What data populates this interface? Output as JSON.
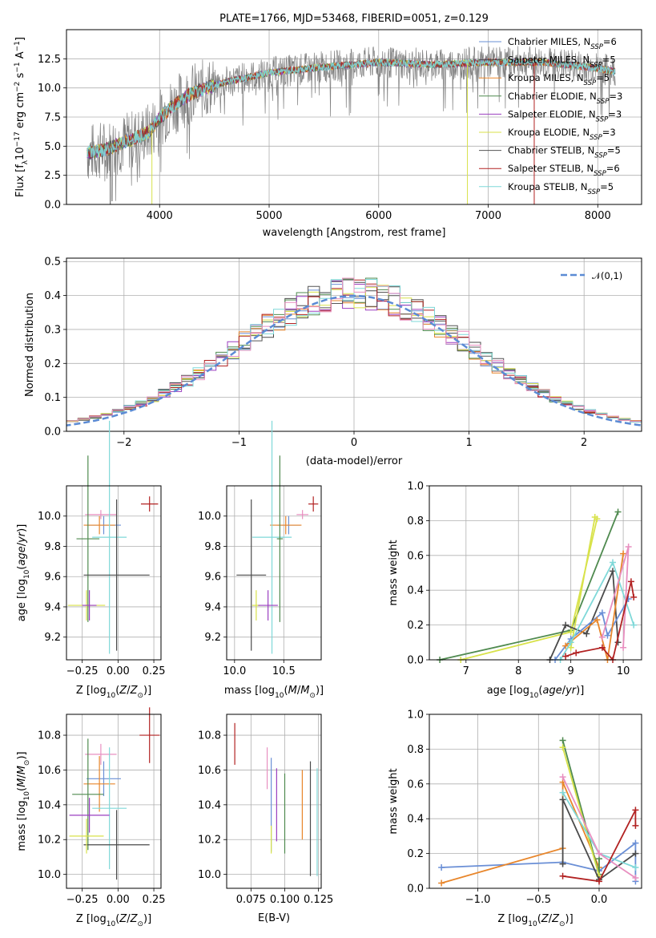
{
  "chart_data": [
    {
      "type": "line",
      "title": "PLATE=1766, MJD=53468, FIBERID=0051, z=0.129",
      "xlabel": "wavelength [Angstrom, rest frame]",
      "ylabel": "Flux [f_λ 10^-17 erg cm^-2 s^-1 A^-1]",
      "xlim": [
        3150,
        8400
      ],
      "ylim": [
        0,
        15
      ],
      "xticks": [
        "4000",
        "5000",
        "6000",
        "7000",
        "8000"
      ],
      "yticks": [
        "0.0",
        "2.5",
        "5.0",
        "7.5",
        "10.0",
        "12.5"
      ],
      "spectrum_range": [
        3340,
        8160
      ],
      "legend_position": "upper right",
      "series": [
        {
          "name": "Chabrier MILES, N_SSP=6",
          "color": "#6a8fd6"
        },
        {
          "name": "Salpeter MILES, N_SSP=5",
          "color": "#4a4a4a"
        },
        {
          "name": "Kroupa MILES, N_SSP=5",
          "color": "#e8862b"
        },
        {
          "name": "Chabrier ELODIE, N_SSP=3",
          "color": "#4f8a4f"
        },
        {
          "name": "Salpeter ELODIE, N_SSP=3",
          "color": "#9b3fc0"
        },
        {
          "name": "Kroupa ELODIE, N_SSP=3",
          "color": "#d8e24a"
        },
        {
          "name": "Chabrier STELIB, N_SSP=5",
          "color": "#555555"
        },
        {
          "name": "Salpeter STELIB, N_SSP=6",
          "color": "#b22222"
        },
        {
          "name": "Kroupa STELIB, N_SSP=5",
          "color": "#7fd8d8"
        }
      ],
      "continuum": [
        [
          3340,
          4.4
        ],
        [
          3500,
          4.7
        ],
        [
          3700,
          5.4
        ],
        [
          3900,
          6.2
        ],
        [
          4000,
          7.4
        ],
        [
          4100,
          8.3
        ],
        [
          4300,
          9.6
        ],
        [
          4600,
          10.5
        ],
        [
          5000,
          11.3
        ],
        [
          5500,
          11.8
        ],
        [
          6000,
          12.2
        ],
        [
          6500,
          12.0
        ],
        [
          7000,
          12.2
        ],
        [
          7500,
          12.2
        ],
        [
          8000,
          11.7
        ],
        [
          8160,
          11.4
        ]
      ],
      "spike_lines": [
        {
          "x": 3930,
          "color": "#d8e24a",
          "y_bottom": 0
        },
        {
          "x": 6810,
          "color": "#d8e24a",
          "y_bottom": 0
        },
        {
          "x": 7420,
          "color": "#b22222",
          "y_bottom": 0
        },
        {
          "x": 3550,
          "color": "#555555",
          "y_bottom": 0
        }
      ]
    },
    {
      "type": "histogram",
      "xlabel": "(data-model)/error",
      "ylabel": "Normed distribution",
      "xlim": [
        -2.5,
        2.5
      ],
      "ylim": [
        0,
        0.51
      ],
      "xticks": [
        "−2",
        "−1",
        "0",
        "1",
        "2"
      ],
      "yticks": [
        "0.0",
        "0.1",
        "0.2",
        "0.3",
        "0.4",
        "0.5"
      ],
      "reference_curve": {
        "name": "𝒩(0,1)",
        "color": "#5b8bd4",
        "mean": 0,
        "sigma": 1
      },
      "legend_position": "upper right",
      "colors": [
        "#6a8fd6",
        "#4a4a4a",
        "#e8862b",
        "#4f8a4f",
        "#9b3fc0",
        "#d8e24a",
        "#555555",
        "#b22222",
        "#7fd8d8",
        "#e88fc0"
      ]
    },
    {
      "type": "scatter",
      "xlabel": "Z [log10(Z/Z⊙)]",
      "ylabel": "age  [log10(age/yr)]",
      "xlim": [
        -0.36,
        0.3
      ],
      "ylim": [
        9.05,
        10.2
      ],
      "xticks": [
        "−0.25",
        "0.00",
        "0.25"
      ],
      "yticks": [
        "9.2",
        "9.4",
        "9.6",
        "9.8",
        "10.0"
      ],
      "points": [
        {
          "x": 0.22,
          "y": 10.08,
          "xerr": 0.06,
          "yerr": 0.05,
          "color": "#b22222"
        },
        {
          "x": -0.12,
          "y": 10.01,
          "xerr": 0.11,
          "yerr": 0.03,
          "color": "#e88fc0"
        },
        {
          "x": -0.1,
          "y": 9.94,
          "xerr": 0.12,
          "yerr": 0.06,
          "color": "#6a8fd6"
        },
        {
          "x": -0.13,
          "y": 9.94,
          "xerr": 0.11,
          "yerr": 0.06,
          "color": "#e8862b"
        },
        {
          "x": -0.21,
          "y": 9.85,
          "xerr": 0.08,
          "yerr": 0.55,
          "color": "#4f8a4f"
        },
        {
          "x": -0.06,
          "y": 9.86,
          "xerr": 0.12,
          "yerr": 0.77,
          "color": "#7fd8d8"
        },
        {
          "x": -0.01,
          "y": 9.61,
          "xerr": 0.23,
          "yerr": 0.5,
          "color": "#4a4a4a"
        },
        {
          "x": -0.22,
          "y": 9.41,
          "xerr": 0.13,
          "yerr": 0.1,
          "color": "#d8e24a"
        },
        {
          "x": -0.2,
          "y": 9.41,
          "xerr": 0.05,
          "yerr": 0.1,
          "color": "#9b3fc0"
        }
      ]
    },
    {
      "type": "scatter",
      "xlabel": "mass [log10(M/M⊙)]",
      "ylabel": "",
      "xlim": [
        9.92,
        10.88
      ],
      "ylim": [
        9.05,
        10.2
      ],
      "xticks": [
        "10.0",
        "10.5"
      ],
      "yticks": [
        "9.2",
        "9.4",
        "9.6",
        "9.8",
        "10.0"
      ],
      "points": [
        {
          "x": 10.8,
          "y": 10.08,
          "xerr": 0.05,
          "yerr": 0.05,
          "color": "#b22222"
        },
        {
          "x": 10.69,
          "y": 10.01,
          "xerr": 0.06,
          "yerr": 0.03,
          "color": "#e88fc0"
        },
        {
          "x": 10.55,
          "y": 9.94,
          "xerr": 0.12,
          "yerr": 0.06,
          "color": "#6a8fd6"
        },
        {
          "x": 10.52,
          "y": 9.94,
          "xerr": 0.16,
          "yerr": 0.06,
          "color": "#e8862b"
        },
        {
          "x": 10.38,
          "y": 9.86,
          "xerr": 0.2,
          "yerr": 0.77,
          "color": "#7fd8d8"
        },
        {
          "x": 10.46,
          "y": 9.85,
          "xerr": 0.03,
          "yerr": 0.55,
          "color": "#4f8a4f"
        },
        {
          "x": 10.17,
          "y": 9.61,
          "xerr": 0.15,
          "yerr": 0.5,
          "color": "#4a4a4a"
        },
        {
          "x": 10.22,
          "y": 9.41,
          "xerr": 0.04,
          "yerr": 0.1,
          "color": "#d8e24a"
        },
        {
          "x": 10.34,
          "y": 9.41,
          "xerr": 0.1,
          "yerr": 0.1,
          "color": "#9b3fc0"
        }
      ]
    },
    {
      "type": "line",
      "xlabel": "age  [log10(age/yr)]",
      "ylabel": "mass weight",
      "xlim": [
        6.3,
        10.35
      ],
      "ylim": [
        0,
        1.0
      ],
      "xticks": [
        "7",
        "8",
        "9",
        "10"
      ],
      "yticks": [
        "0.0",
        "0.2",
        "0.4",
        "0.6",
        "0.8",
        "1.0"
      ],
      "series": [
        {
          "color": "#4f8a4f",
          "points": [
            [
              6.5,
              0.0
            ],
            [
              9.0,
              0.17
            ],
            [
              9.9,
              0.85
            ]
          ]
        },
        {
          "color": "#d8e24a",
          "points": [
            [
              6.9,
              0.0
            ],
            [
              9.0,
              0.16
            ],
            [
              9.5,
              0.81
            ]
          ]
        },
        {
          "color": "#d8e24a",
          "points": [
            [
              9.0,
              0.07
            ],
            [
              9.46,
              0.82
            ]
          ]
        },
        {
          "color": "#4a4a4a",
          "points": [
            [
              8.6,
              0.0
            ],
            [
              8.9,
              0.2
            ],
            [
              9.3,
              0.15
            ],
            [
              9.8,
              0.51
            ],
            [
              9.9,
              0.1
            ]
          ]
        },
        {
          "color": "#6a8fd6",
          "points": [
            [
              8.7,
              0.0
            ],
            [
              9.0,
              0.12
            ],
            [
              9.6,
              0.27
            ],
            [
              9.7,
              0.14
            ],
            [
              10.1,
              0.35
            ]
          ]
        },
        {
          "color": "#e8862b",
          "points": [
            [
              8.9,
              0.08
            ],
            [
              9.5,
              0.23
            ],
            [
              9.7,
              0.0
            ],
            [
              10.0,
              0.61
            ]
          ]
        },
        {
          "color": "#7fd8d8",
          "points": [
            [
              8.8,
              0.0
            ],
            [
              9.0,
              0.1
            ],
            [
              9.8,
              0.56
            ],
            [
              10.2,
              0.2
            ]
          ]
        },
        {
          "color": "#e88fc0",
          "points": [
            [
              9.6,
              0.13
            ],
            [
              10.1,
              0.65
            ],
            [
              10.0,
              0.07
            ]
          ]
        },
        {
          "color": "#b22222",
          "points": [
            [
              8.9,
              0.02
            ],
            [
              9.1,
              0.04
            ],
            [
              9.6,
              0.07
            ],
            [
              9.8,
              0.0
            ],
            [
              10.15,
              0.45
            ],
            [
              10.2,
              0.36
            ]
          ]
        }
      ]
    },
    {
      "type": "scatter",
      "xlabel": "Z [log10(Z/Z⊙)]",
      "ylabel": "mass [log10(M/M⊙)]",
      "xlim": [
        -0.36,
        0.3
      ],
      "ylim": [
        9.92,
        10.92
      ],
      "xticks": [
        "−0.25",
        "0.00",
        "0.25"
      ],
      "yticks": [
        "10.0",
        "10.2",
        "10.4",
        "10.6",
        "10.8"
      ],
      "points": [
        {
          "x": 0.22,
          "y": 10.8,
          "xerr": 0.07,
          "yerr": 0.16,
          "color": "#b22222"
        },
        {
          "x": -0.12,
          "y": 10.69,
          "xerr": 0.11,
          "yerr": 0.06,
          "color": "#e88fc0"
        },
        {
          "x": -0.1,
          "y": 10.55,
          "xerr": 0.12,
          "yerr": 0.1,
          "color": "#6a8fd6"
        },
        {
          "x": -0.13,
          "y": 10.52,
          "xerr": 0.11,
          "yerr": 0.16,
          "color": "#e8862b"
        },
        {
          "x": -0.21,
          "y": 10.46,
          "xerr": 0.11,
          "yerr": 0.32,
          "color": "#4f8a4f"
        },
        {
          "x": -0.06,
          "y": 10.38,
          "xerr": 0.12,
          "yerr": 0.35,
          "color": "#7fd8d8"
        },
        {
          "x": -0.01,
          "y": 10.17,
          "xerr": 0.23,
          "yerr": 0.2,
          "color": "#4a4a4a"
        },
        {
          "x": -0.22,
          "y": 10.22,
          "xerr": 0.12,
          "yerr": 0.1,
          "color": "#d8e24a"
        },
        {
          "x": -0.2,
          "y": 10.34,
          "xerr": 0.14,
          "yerr": 0.1,
          "color": "#9b3fc0"
        }
      ]
    },
    {
      "type": "scatter",
      "xlabel": "E(B-V)",
      "ylabel": "",
      "xlim": [
        0.057,
        0.127
      ],
      "ylim": [
        9.92,
        10.92
      ],
      "xticks": [
        "0.075",
        "0.100",
        "0.125"
      ],
      "yticks": [
        "10.0",
        "10.2",
        "10.4",
        "10.6",
        "10.8"
      ],
      "points": [
        {
          "x": 0.063,
          "y": 10.75,
          "yerr": 0.12,
          "color": "#b22222"
        },
        {
          "x": 0.087,
          "y": 10.61,
          "yerr": 0.12,
          "color": "#e88fc0"
        },
        {
          "x": 0.09,
          "y": 10.4,
          "yerr": 0.27,
          "color": "#6a8fd6"
        },
        {
          "x": 0.094,
          "y": 10.4,
          "yerr": 0.21,
          "color": "#9b3fc0"
        },
        {
          "x": 0.1,
          "y": 10.35,
          "yerr": 0.23,
          "color": "#4f8a4f"
        },
        {
          "x": 0.113,
          "y": 10.4,
          "yerr": 0.2,
          "color": "#e8862b"
        },
        {
          "x": 0.119,
          "y": 10.32,
          "yerr": 0.33,
          "color": "#4a4a4a"
        },
        {
          "x": 0.124,
          "y": 10.3,
          "yerr": 0.31,
          "color": "#7fd8d8"
        },
        {
          "x": 0.09,
          "y": 10.2,
          "yerr": 0.08,
          "color": "#d8e24a"
        }
      ]
    },
    {
      "type": "line",
      "xlabel": "Z [log10(Z/Z⊙)]",
      "ylabel": "mass weight",
      "xlim": [
        -1.4,
        0.35
      ],
      "ylim": [
        0,
        1.0
      ],
      "xticks": [
        "−1.0",
        "−0.5",
        "0.0"
      ],
      "yticks": [
        "0.0",
        "0.2",
        "0.4",
        "0.6",
        "0.8",
        "1.0"
      ],
      "series": [
        {
          "color": "#6a8fd6",
          "points": [
            [
              -1.3,
              0.12
            ],
            [
              -0.3,
              0.15
            ],
            [
              0.0,
              0.1
            ],
            [
              0.3,
              0.26
            ],
            [
              0.3,
              0.04
            ]
          ]
        },
        {
          "color": "#e8862b",
          "points": [
            [
              -1.3,
              0.03
            ],
            [
              -0.3,
              0.23
            ],
            [
              -0.3,
              0.61
            ],
            [
              0.0,
              0.12
            ]
          ]
        },
        {
          "color": "#4f8a4f",
          "points": [
            [
              -0.3,
              0.85
            ],
            [
              0.0,
              0.08
            ],
            [
              0.0,
              0.17
            ]
          ]
        },
        {
          "color": "#d8e24a",
          "points": [
            [
              -0.3,
              0.81
            ],
            [
              0.0,
              0.07
            ]
          ]
        },
        {
          "color": "#4a4a4a",
          "points": [
            [
              -0.3,
              0.14
            ],
            [
              -0.3,
              0.51
            ],
            [
              0.0,
              0.05
            ],
            [
              0.3,
              0.2
            ]
          ]
        },
        {
          "color": "#7fd8d8",
          "points": [
            [
              -0.3,
              0.55
            ],
            [
              0.0,
              0.2
            ],
            [
              0.3,
              0.12
            ]
          ]
        },
        {
          "color": "#e88fc0",
          "points": [
            [
              -0.3,
              0.64
            ],
            [
              0.0,
              0.2
            ],
            [
              0.3,
              0.06
            ]
          ]
        },
        {
          "color": "#b22222",
          "points": [
            [
              -0.3,
              0.07
            ],
            [
              0.0,
              0.04
            ],
            [
              0.3,
              0.45
            ],
            [
              0.3,
              0.36
            ]
          ]
        }
      ]
    }
  ]
}
